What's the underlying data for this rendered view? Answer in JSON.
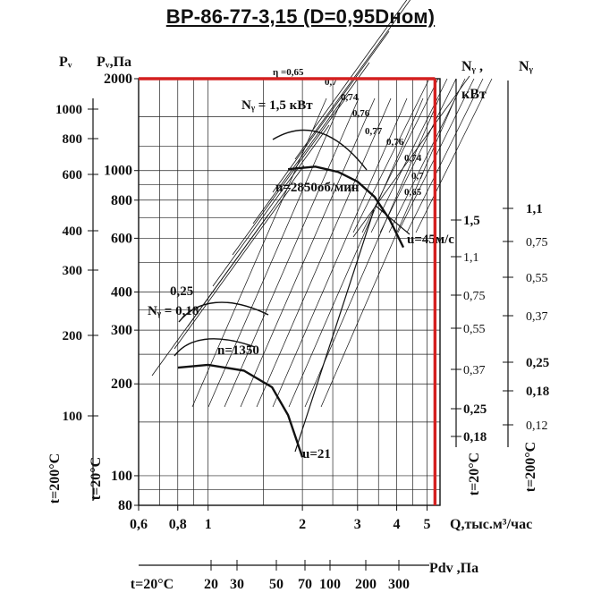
{
  "chart_data": {
    "type": "line",
    "title": "ВР-86-77-3,15  (D=0,95Dном)",
    "x_axis": {
      "label": "Q,тыс.м³/час",
      "scale": "log",
      "range": [
        0.6,
        5.5
      ],
      "ticks": [
        "0,6",
        "0,8",
        "1",
        "2",
        "3",
        "4",
        "5"
      ]
    },
    "y_axis": {
      "label": "Pᵥ,Па",
      "scale": "log",
      "range": [
        80,
        2000
      ],
      "ticks": [
        "80",
        "100",
        "200",
        "300",
        "400",
        "600",
        "800",
        "1000",
        "2000"
      ]
    },
    "outer_y_axis": {
      "label": "Pᵥ",
      "ticks": [
        "100",
        "200",
        "300",
        "400",
        "600",
        "800",
        "1000"
      ],
      "temp_label": "t=200°C"
    },
    "inner_temp_label": "t=20°C",
    "right_axis_1": {
      "label": "Nᵧ ,",
      "unit": "кВт",
      "ticks": [
        "0,18",
        "0,25",
        "0,37",
        "0,55",
        "0,75",
        "1,1",
        "1,5"
      ],
      "temp_label": "t=20°C"
    },
    "right_axis_2": {
      "label": "Nᵧ",
      "ticks": [
        "0,12",
        "0,18",
        "0,25",
        "0,37",
        "0,55",
        "0,75",
        "1,1"
      ],
      "temp_label": "t=200°C"
    },
    "bottom_axis": {
      "label": "Pdv ,Па",
      "temp_label": "t=20°C",
      "ticks": [
        "20",
        "30",
        "50",
        "70",
        "100",
        "200",
        "300"
      ]
    },
    "annotations": {
      "eta": "η =0,65",
      "eta_values": [
        "0,7",
        "0,74",
        "0,76",
        "0,77",
        "0,76",
        "0,74",
        "0,7",
        "0,65"
      ],
      "power_top": "Nᵧ = 1,5 кВт",
      "power_025": "0,25",
      "power_018": "Nᵧ = 0,18",
      "speed_high": "n=2850об/мин",
      "speed_low": "n=1350",
      "u_high": "u=45м/с",
      "u_low": "u=21"
    },
    "series": [
      {
        "name": "n=2850об/мин",
        "x": [
          1.8,
          2.2,
          2.6,
          3.0,
          3.4,
          3.8,
          4.2
        ],
        "y": [
          1010,
          1030,
          990,
          920,
          820,
          690,
          560
        ]
      },
      {
        "name": "n=1350",
        "x": [
          0.8,
          1.0,
          1.3,
          1.6,
          1.8,
          2.0
        ],
        "y": [
          226,
          231,
          221,
          195,
          158,
          115
        ]
      }
    ],
    "marker_lines": [
      {
        "type": "horizontal",
        "y": 2000,
        "color": "#d42020"
      },
      {
        "type": "vertical",
        "x": 5.3,
        "color": "#d42020"
      }
    ],
    "grid": true,
    "legend": "none"
  }
}
